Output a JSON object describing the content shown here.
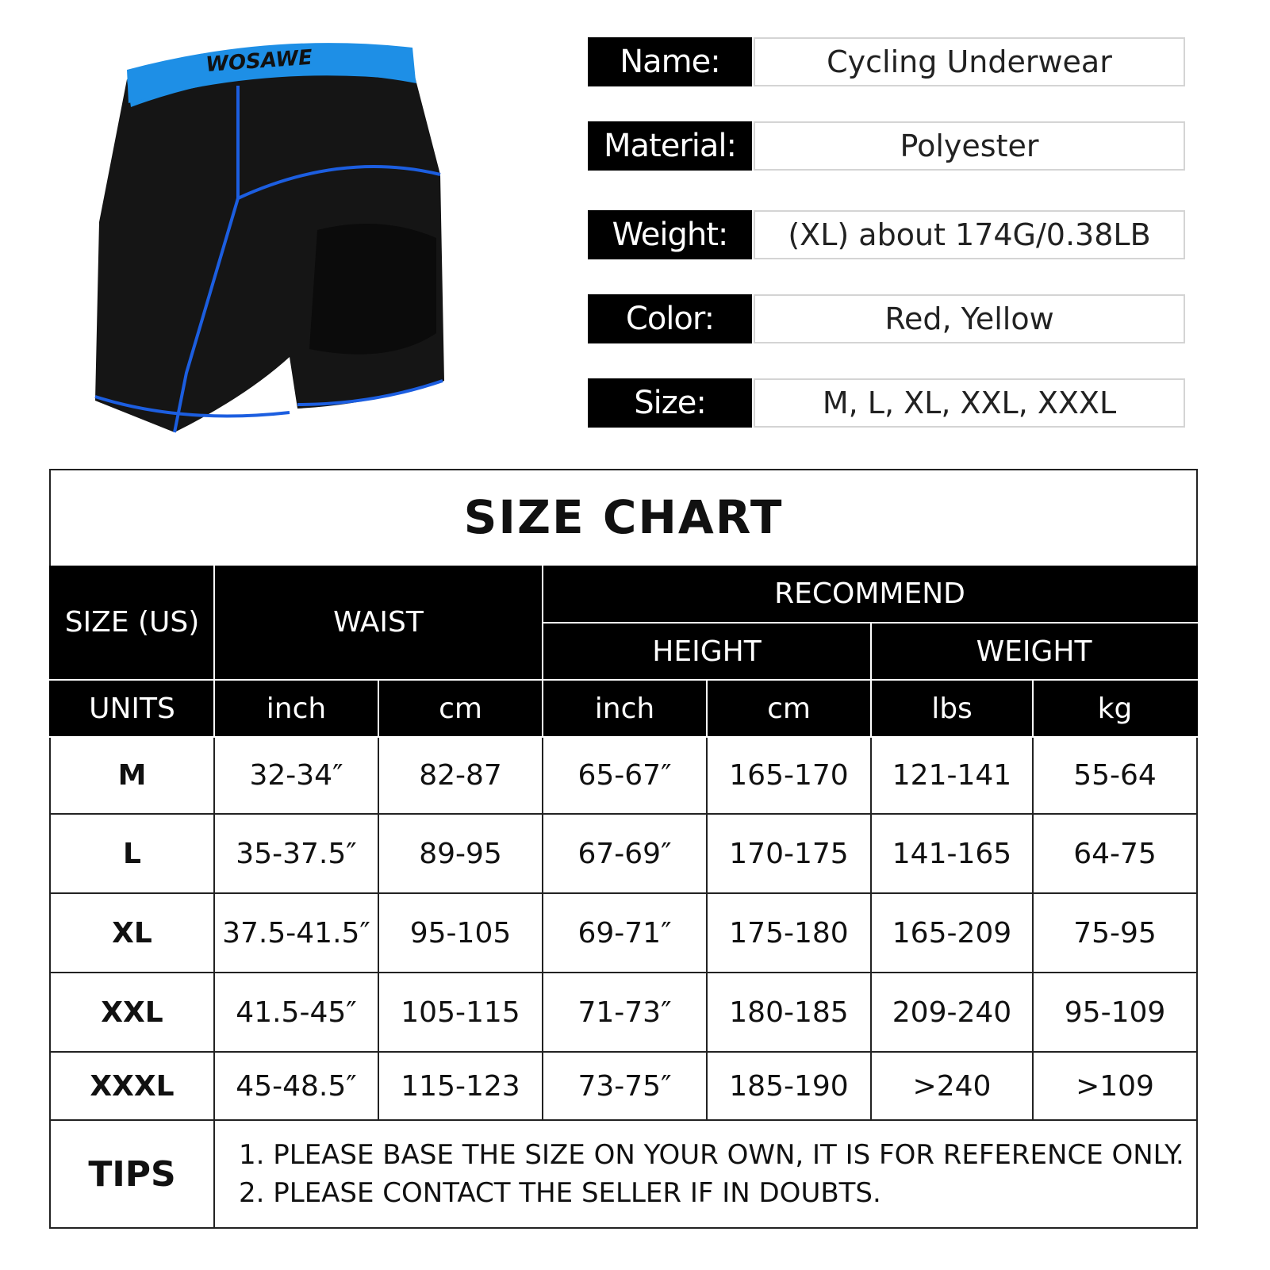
{
  "product": {
    "brand": "WOSAWE",
    "colors": {
      "body": "#111111",
      "trim": "#1e8fe6",
      "stitch": "#1c5ee0"
    }
  },
  "specs": [
    {
      "label": "Name:",
      "value": "Cycling Underwear"
    },
    {
      "label": "Material:",
      "value": "Polyester"
    },
    {
      "label": "Weight:",
      "value": "(XL)  about 174G/0.38LB"
    },
    {
      "label": "Color:",
      "value": "Red, Yellow"
    },
    {
      "label": "Size:",
      "value": "M,  L,  XL,  XXL,  XXXL"
    }
  ],
  "size_chart": {
    "title": "SIZE CHART",
    "headers": {
      "size": "SIZE (US)",
      "waist": "WAIST",
      "recommend": "RECOMMEND",
      "height": "HEIGHT",
      "weight": "WEIGHT"
    },
    "units": [
      "UNITS",
      "inch",
      "cm",
      "inch",
      "cm",
      "lbs",
      "kg"
    ],
    "rows": [
      [
        "M",
        "32-34″",
        "82-87",
        "65-67″",
        "165-170",
        "121-141",
        "55-64"
      ],
      [
        "L",
        "35-37.5″",
        "89-95",
        "67-69″",
        "170-175",
        "141-165",
        "64-75"
      ],
      [
        "XL",
        "37.5-41.5″",
        "95-105",
        "69-71″",
        "175-180",
        "165-209",
        "75-95"
      ],
      [
        "XXL",
        "41.5-45″",
        "105-115",
        "71-73″",
        "180-185",
        "209-240",
        "95-109"
      ],
      [
        "XXXL",
        "45-48.5″",
        "115-123",
        "73-75″",
        "185-190",
        ">240",
        ">109"
      ]
    ],
    "tips_label": "TIPS",
    "tips": [
      "1. PLEASE BASE THE SIZE ON YOUR OWN, IT IS FOR REFERENCE ONLY.",
      "2. PLEASE CONTACT THE SELLER IF IN DOUBTS."
    ]
  }
}
